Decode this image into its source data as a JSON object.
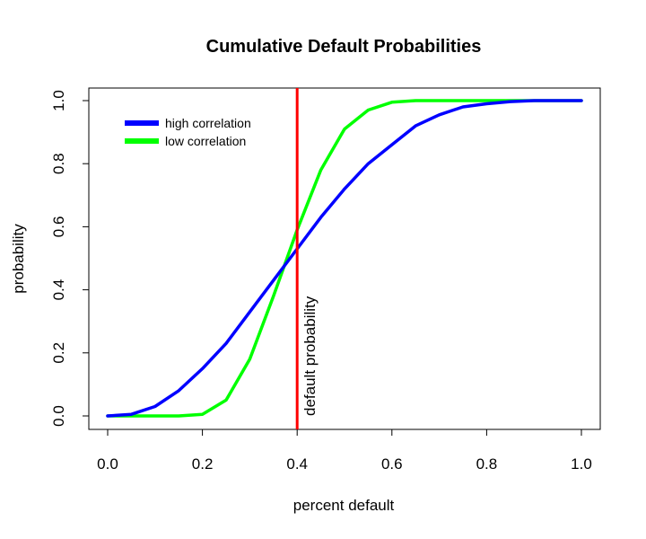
{
  "chart_data": {
    "type": "line",
    "title": "Cumulative Default Probabilities",
    "xlabel": "percent default",
    "ylabel": "probability",
    "xlim": [
      0,
      1
    ],
    "ylim": [
      0,
      1
    ],
    "xticks": [
      "0.0",
      "0.2",
      "0.4",
      "0.6",
      "0.8",
      "1.0"
    ],
    "yticks": [
      "0.0",
      "0.2",
      "0.4",
      "0.6",
      "0.8",
      "1.0"
    ],
    "grid": false,
    "legend_position": "top-left",
    "x": [
      0.0,
      0.05,
      0.1,
      0.15,
      0.2,
      0.25,
      0.3,
      0.35,
      0.4,
      0.45,
      0.5,
      0.55,
      0.6,
      0.65,
      0.7,
      0.75,
      0.8,
      0.85,
      0.9,
      0.95,
      1.0
    ],
    "series": [
      {
        "name": "high correlation",
        "color": "#0000ff",
        "values": [
          0.0,
          0.005,
          0.03,
          0.08,
          0.15,
          0.23,
          0.33,
          0.43,
          0.53,
          0.63,
          0.72,
          0.8,
          0.86,
          0.92,
          0.955,
          0.98,
          0.99,
          0.997,
          1.0,
          1.0,
          1.0
        ]
      },
      {
        "name": "low correlation",
        "color": "#00ff00",
        "values": [
          0.0,
          0.0,
          0.0,
          0.0,
          0.005,
          0.05,
          0.18,
          0.38,
          0.59,
          0.78,
          0.91,
          0.97,
          0.995,
          1.0,
          1.0,
          1.0,
          1.0,
          1.0,
          1.0,
          1.0,
          1.0
        ]
      }
    ],
    "vline": {
      "x": 0.4,
      "color": "#ff0000",
      "label": "default probability"
    }
  }
}
